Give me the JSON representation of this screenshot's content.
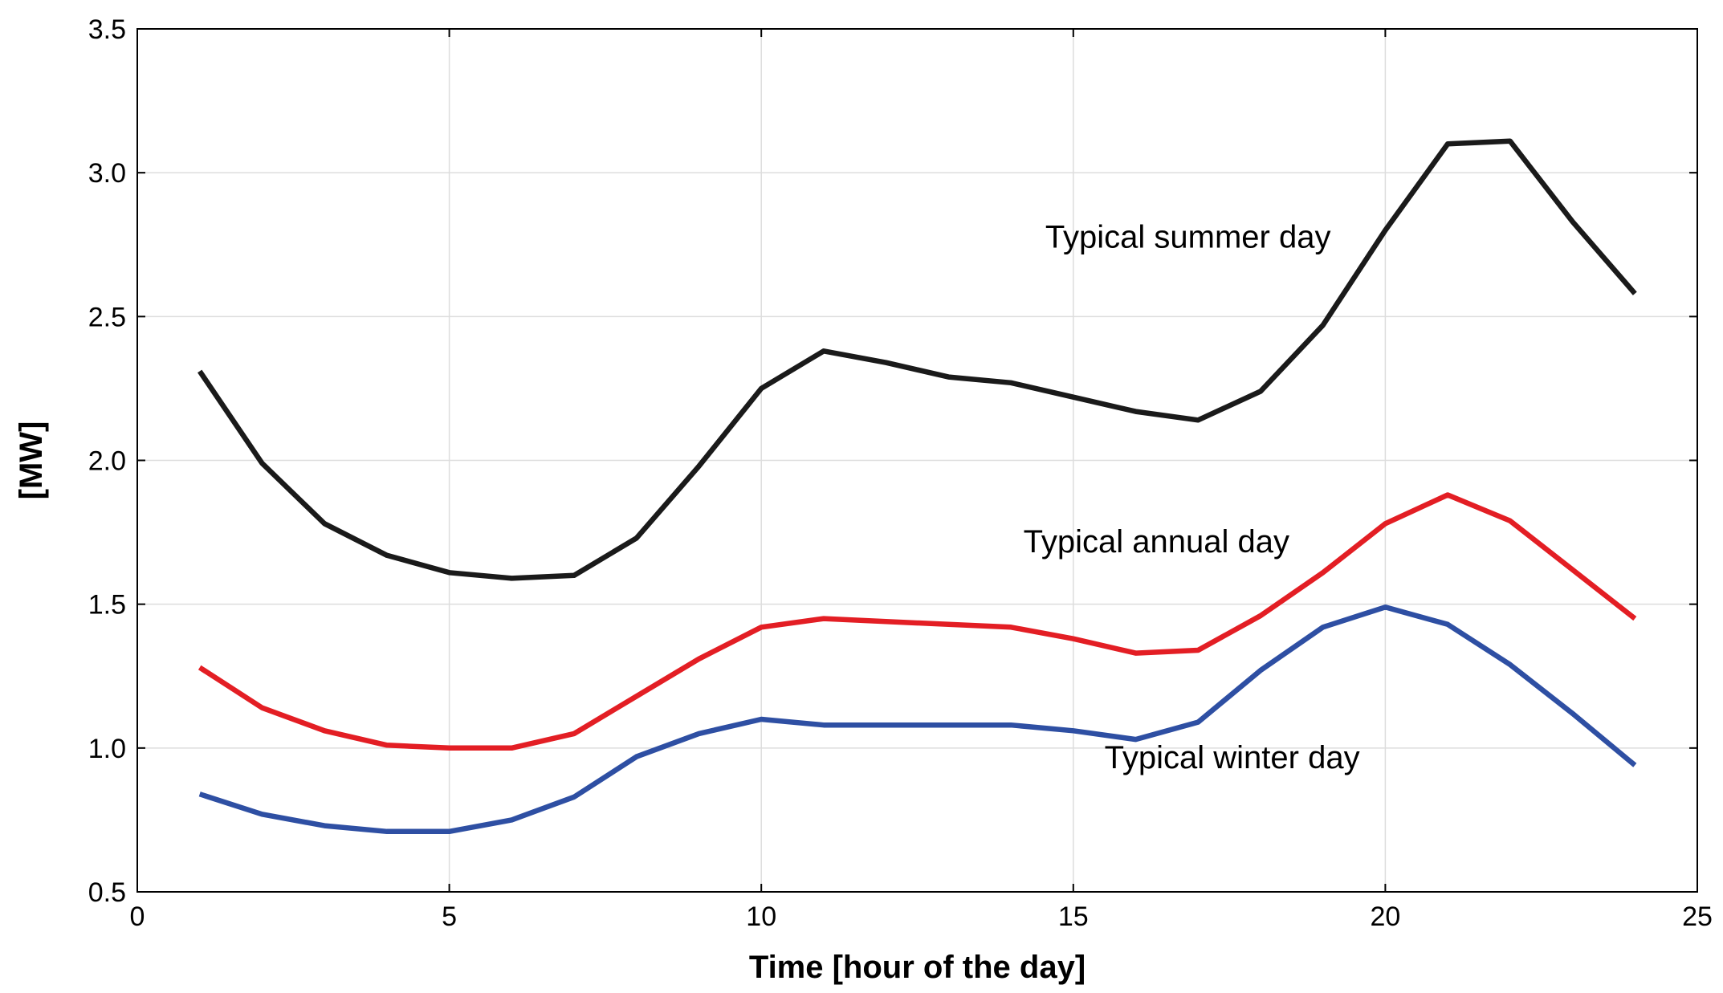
{
  "chart_data": {
    "type": "line",
    "title": "",
    "xlabel": "Time [hour of the day]",
    "ylabel": "[MW]",
    "xlim": [
      0,
      25
    ],
    "ylim": [
      0.5,
      3.5
    ],
    "xticks": [
      0,
      5,
      10,
      15,
      20,
      25
    ],
    "xtick_labels": [
      "0",
      "5",
      "10",
      "15",
      "20",
      "25"
    ],
    "yticks": [
      0.5,
      1.0,
      1.5,
      2.0,
      2.5,
      3.0,
      3.5
    ],
    "ytick_labels": [
      "0.5",
      "1.0",
      "1.5",
      "2.0",
      "2.5",
      "3.0",
      "3.5"
    ],
    "grid": true,
    "x": [
      1,
      2,
      3,
      4,
      5,
      6,
      7,
      8,
      9,
      10,
      11,
      12,
      13,
      14,
      15,
      16,
      17,
      18,
      19,
      20,
      21,
      22,
      23,
      24
    ],
    "series": [
      {
        "name": "Typical summer day",
        "color": "#1a1a1a",
        "values": [
          2.31,
          1.99,
          1.78,
          1.67,
          1.61,
          1.59,
          1.6,
          1.73,
          1.98,
          2.25,
          2.38,
          2.34,
          2.29,
          2.27,
          2.22,
          2.17,
          2.14,
          2.24,
          2.47,
          2.8,
          3.1,
          3.11,
          2.83,
          2.58
        ]
      },
      {
        "name": "Typical annual day",
        "color": "#e31e24",
        "values": [
          1.28,
          1.14,
          1.06,
          1.01,
          1.0,
          1.0,
          1.05,
          1.18,
          1.31,
          1.42,
          1.45,
          1.44,
          1.43,
          1.42,
          1.38,
          1.33,
          1.34,
          1.46,
          1.61,
          1.78,
          1.88,
          1.79,
          1.62,
          1.45
        ]
      },
      {
        "name": "Typical winter day",
        "color": "#2e4fa3",
        "values": [
          0.84,
          0.77,
          0.73,
          0.71,
          0.71,
          0.75,
          0.83,
          0.97,
          1.05,
          1.1,
          1.08,
          1.08,
          1.08,
          1.08,
          1.06,
          1.03,
          1.09,
          1.27,
          1.42,
          1.49,
          1.43,
          1.29,
          1.12,
          0.94
        ]
      }
    ],
    "annotations": [
      {
        "text": "Typical summer day",
        "x": 14.55,
        "y": 2.74,
        "series": "Typical summer day"
      },
      {
        "text": "Typical annual day",
        "x": 14.2,
        "y": 1.68,
        "series": "Typical annual day"
      },
      {
        "text": "Typical winter day",
        "x": 15.5,
        "y": 0.93,
        "series": "Typical winter day"
      }
    ]
  }
}
